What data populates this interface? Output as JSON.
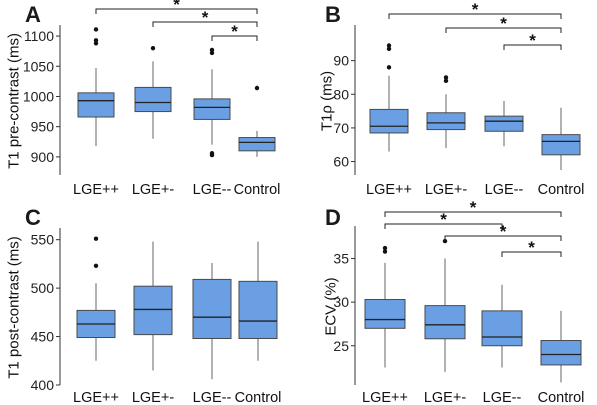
{
  "style": {
    "box_fill": "#6a9fe3",
    "box_stroke": "#4a4a4a",
    "median": "#222222",
    "outlier": "#111111",
    "bracket": "#222222"
  },
  "chart_data": [
    {
      "type": "boxplot",
      "panel": "A",
      "ylabel": "T1 pre-contrast (ms)",
      "ylim": [
        870,
        1115
      ],
      "yticks": [
        900,
        950,
        1000,
        1050,
        1100
      ],
      "categories": [
        "LGE++",
        "LGE+-",
        "LGE--",
        "Control"
      ],
      "boxes": [
        {
          "whisker_low": 918,
          "q1": 966,
          "median": 993,
          "q3": 1006,
          "whisker_high": 1047,
          "outliers": [
            1088,
            1093,
            1111
          ]
        },
        {
          "whisker_low": 930,
          "q1": 975,
          "median": 990,
          "q3": 1015,
          "whisker_high": 1058,
          "outliers": [
            1080
          ]
        },
        {
          "whisker_low": 920,
          "q1": 962,
          "median": 982,
          "q3": 996,
          "whisker_high": 1045,
          "outliers": [
            1072,
            1077,
            903,
            906
          ]
        },
        {
          "whisker_low": 900,
          "q1": 910,
          "median": 924,
          "q3": 932,
          "whisker_high": 943,
          "outliers": [
            1014
          ]
        }
      ],
      "significance": [
        {
          "from": "LGE++",
          "to": "Control",
          "label": "*"
        },
        {
          "from": "LGE+-",
          "to": "Control",
          "label": "*"
        },
        {
          "from": "LGE--",
          "to": "Control",
          "label": "*"
        }
      ]
    },
    {
      "type": "boxplot",
      "panel": "B",
      "ylabel": "T1ρ (ms)",
      "ylim": [
        56,
        100
      ],
      "yticks": [
        60,
        70,
        80,
        90
      ],
      "categories": [
        "LGE++",
        "LGE+-",
        "LGE--",
        "Control"
      ],
      "boxes": [
        {
          "whisker_low": 63,
          "q1": 68.5,
          "median": 70.5,
          "q3": 75.5,
          "whisker_high": 85.5,
          "outliers": [
            88,
            93.5,
            94.5
          ]
        },
        {
          "whisker_low": 64,
          "q1": 69.5,
          "median": 71.5,
          "q3": 74.5,
          "whisker_high": 80,
          "outliers": [
            84,
            85
          ]
        },
        {
          "whisker_low": 64.5,
          "q1": 69,
          "median": 72,
          "q3": 73.5,
          "whisker_high": 78,
          "outliers": []
        },
        {
          "whisker_low": 57.5,
          "q1": 62,
          "median": 66,
          "q3": 68,
          "whisker_high": 76,
          "outliers": []
        }
      ],
      "significance": [
        {
          "from": "LGE++",
          "to": "Control",
          "label": "*"
        },
        {
          "from": "LGE+-",
          "to": "Control",
          "label": "*"
        },
        {
          "from": "LGE--",
          "to": "Control",
          "label": "*"
        }
      ]
    },
    {
      "type": "boxplot",
      "panel": "C",
      "ylabel": "T1 post-contrast (ms)",
      "ylim": [
        400,
        560
      ],
      "yticks": [
        400,
        450,
        500,
        550
      ],
      "categories": [
        "LGE++",
        "LGE+-",
        "LGE--",
        "Control"
      ],
      "boxes": [
        {
          "whisker_low": 425,
          "q1": 449,
          "median": 463,
          "q3": 477,
          "whisker_high": 505,
          "outliers": [
            523,
            551
          ]
        },
        {
          "whisker_low": 415,
          "q1": 452,
          "median": 478,
          "q3": 502,
          "whisker_high": 548,
          "outliers": []
        },
        {
          "whisker_low": 406,
          "q1": 448,
          "median": 470,
          "q3": 509,
          "whisker_high": 526,
          "outliers": []
        },
        {
          "whisker_low": 425,
          "q1": 448,
          "median": 466,
          "q3": 507,
          "whisker_high": 548,
          "outliers": []
        }
      ],
      "significance": []
    },
    {
      "type": "boxplot",
      "panel": "D",
      "ylabel": "ECV (%)",
      "ylim": [
        20.5,
        38.5
      ],
      "yticks": [
        25,
        30,
        35
      ],
      "categories": [
        "LGE++",
        "LGE+-",
        "LGE--",
        "Control"
      ],
      "boxes": [
        {
          "whisker_low": 22.5,
          "q1": 27,
          "median": 28,
          "q3": 30.3,
          "whisker_high": 34.5,
          "outliers": [
            35.8,
            36.2
          ]
        },
        {
          "whisker_low": 22,
          "q1": 25.8,
          "median": 27.4,
          "q3": 29.6,
          "whisker_high": 35,
          "outliers": [
            37
          ]
        },
        {
          "whisker_low": 22.5,
          "q1": 25,
          "median": 26,
          "q3": 29,
          "whisker_high": 32,
          "outliers": []
        },
        {
          "whisker_low": 20.8,
          "q1": 22.8,
          "median": 24,
          "q3": 25.6,
          "whisker_high": 29,
          "outliers": []
        }
      ],
      "significance": [
        {
          "from": "LGE++",
          "to": "Control",
          "label": "*"
        },
        {
          "from": "LGE++",
          "to": "LGE--",
          "label": "*"
        },
        {
          "from": "LGE+-",
          "to": "Control",
          "label": "*"
        },
        {
          "from": "LGE--",
          "to": "Control",
          "label": "*"
        }
      ]
    }
  ]
}
